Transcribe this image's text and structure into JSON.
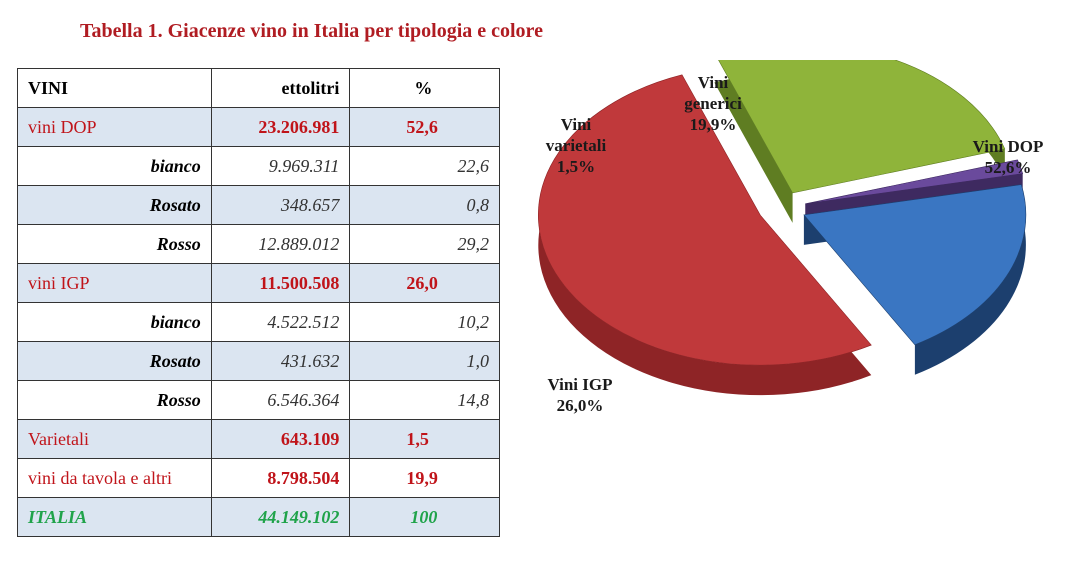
{
  "title": "Tabella 1. Giacenze vino in Italia per tipologia e colore",
  "table": {
    "headers": {
      "name": "VINI",
      "value": "ettolitri",
      "pct": "%"
    },
    "rows": [
      {
        "name": "vini DOP",
        "value": "23.206.981",
        "pct": "52,6",
        "kind": "main",
        "shaded": true
      },
      {
        "name": "bianco",
        "value": "9.969.311",
        "pct": "22,6",
        "kind": "sub",
        "shaded": false
      },
      {
        "name": "Rosato",
        "value": "348.657",
        "pct": "0,8",
        "kind": "sub",
        "shaded": true
      },
      {
        "name": "Rosso",
        "value": "12.889.012",
        "pct": "29,2",
        "kind": "sub",
        "shaded": false
      },
      {
        "name": "vini IGP",
        "value": "11.500.508",
        "pct": "26,0",
        "kind": "main",
        "shaded": true
      },
      {
        "name": "bianco",
        "value": "4.522.512",
        "pct": "10,2",
        "kind": "sub",
        "shaded": false
      },
      {
        "name": "Rosato",
        "value": "431.632",
        "pct": "1,0",
        "kind": "sub",
        "shaded": true
      },
      {
        "name": "Rosso",
        "value": "6.546.364",
        "pct": "14,8",
        "kind": "sub",
        "shaded": false
      },
      {
        "name": "Varietali",
        "value": "643.109",
        "pct": "1,5",
        "kind": "main",
        "shaded": true
      },
      {
        "name": "vini da tavola e altri",
        "value": "8.798.504",
        "pct": "19,9",
        "kind": "main",
        "shaded": false
      },
      {
        "name": "ITALIA",
        "value": "44.149.102",
        "pct": "100",
        "kind": "total",
        "shaded": true
      }
    ]
  },
  "chart_data": {
    "type": "pie",
    "title": "",
    "start_angle_deg": 60,
    "slices": [
      {
        "label_lines": [
          "Vini DOP"
        ],
        "pct_label": "52,6%",
        "value": 52.6,
        "color": "#c0393b",
        "side_color": "#8e2426"
      },
      {
        "label_lines": [
          "Vini IGP"
        ],
        "pct_label": "26,0%",
        "value": 26.0,
        "color": "#8fb43a",
        "side_color": "#5f7d22"
      },
      {
        "label_lines": [
          "Vini",
          "varietali"
        ],
        "pct_label": "1,5%",
        "value": 1.5,
        "color": "#6a4a9c",
        "side_color": "#3e2a60"
      },
      {
        "label_lines": [
          "Vini",
          "generici"
        ],
        "pct_label": "19,9%",
        "value": 19.9,
        "color": "#3a76c2",
        "side_color": "#1c3f6e"
      }
    ]
  }
}
